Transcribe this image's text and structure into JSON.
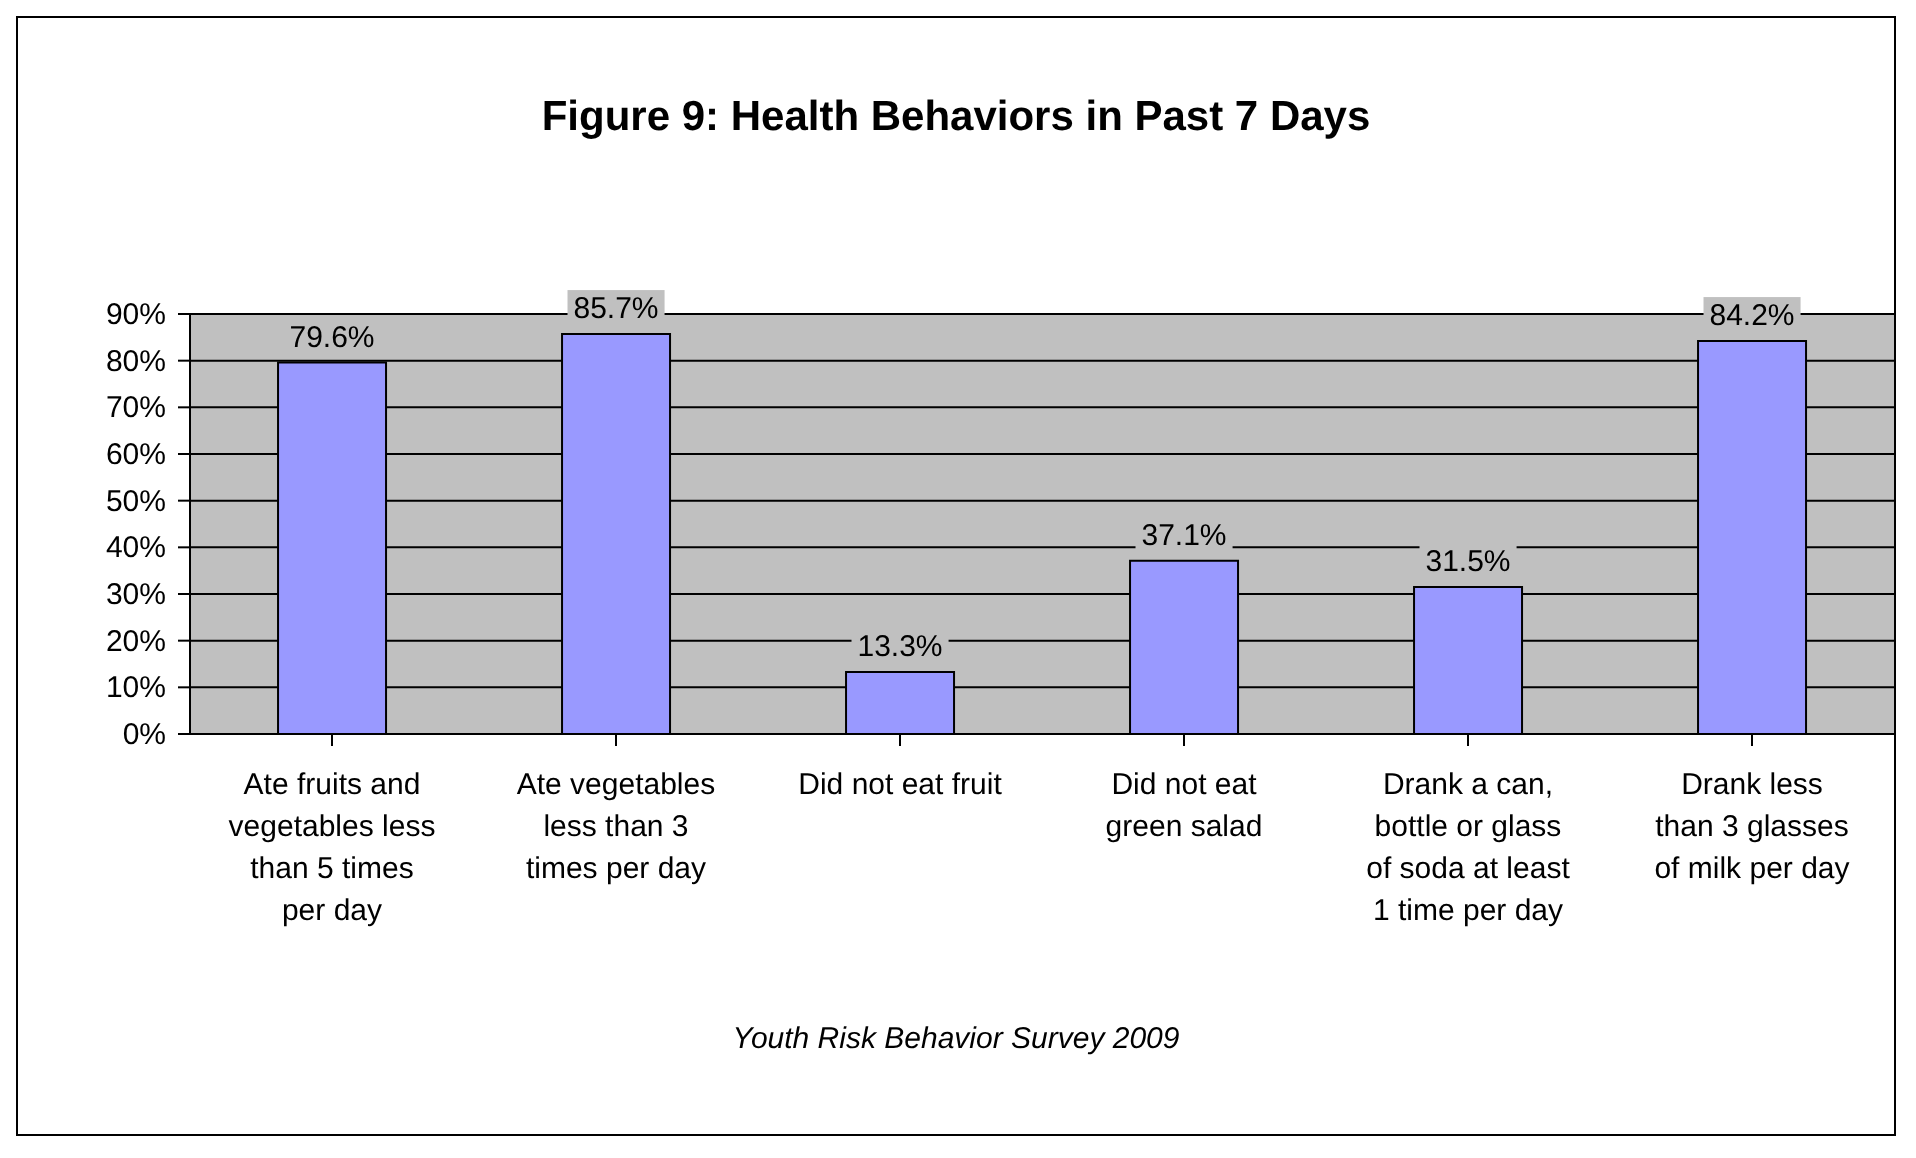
{
  "chart_data": {
    "type": "bar",
    "title": "Figure 9: Health Behaviors in Past 7 Days",
    "categories": [
      "Ate fruits and vegetables less than 5 times per day",
      "Ate vegetables less than 3 times per day",
      "Did not eat fruit",
      "Did not eat green salad",
      "Drank a can, bottle or glass of soda at least 1 time per day",
      "Drank less than 3 glasses of milk per day"
    ],
    "values": [
      79.6,
      85.7,
      13.3,
      37.1,
      31.5,
      84.2
    ],
    "value_labels": [
      "79.6%",
      "85.7%",
      "13.3%",
      "37.1%",
      "31.5%",
      "84.2%"
    ],
    "color": "#9999ff",
    "ylim": [
      0,
      90
    ],
    "yticks": [
      {
        "value": 0,
        "label": "0%"
      },
      {
        "value": 10,
        "label": "10%"
      },
      {
        "value": 20,
        "label": "20%"
      },
      {
        "value": 30,
        "label": "30%"
      },
      {
        "value": 40,
        "label": "40%"
      },
      {
        "value": 50,
        "label": "50%"
      },
      {
        "value": 60,
        "label": "60%"
      },
      {
        "value": 70,
        "label": "70%"
      },
      {
        "value": 80,
        "label": "80%"
      },
      {
        "value": 90,
        "label": "90%"
      }
    ],
    "grid": "y",
    "legend": false,
    "annotations": [
      "Youth Risk Behavior Survey 2009"
    ]
  }
}
